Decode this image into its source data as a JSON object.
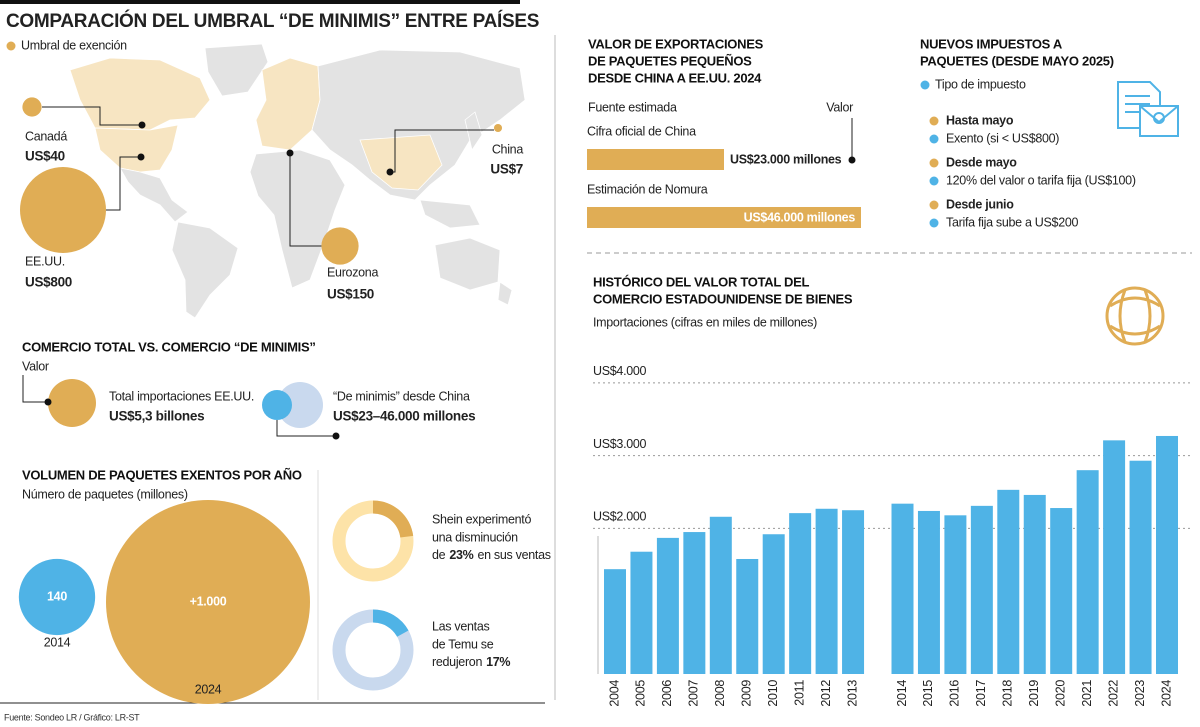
{
  "header": {
    "title": "COMPARACIÓN DEL UMBRAL “DE MINIMIS” ENTRE PAÍSES",
    "legend": "Umbral de exención"
  },
  "map": {
    "points": [
      {
        "name": "Canadá",
        "value": 40,
        "value_label": "US$40"
      },
      {
        "name": "EE.UU.",
        "value": 800,
        "value_label": "US$800"
      },
      {
        "name": "Eurozona",
        "value": 150,
        "value_label": "US$150"
      },
      {
        "name": "China",
        "value": 7,
        "value_label": "US$7"
      }
    ]
  },
  "trade": {
    "title": "COMERCIO TOTAL VS. COMERCIO “DE MINIMIS”",
    "subtitle": "Valor",
    "items": [
      {
        "label": "Total importaciones EE.UU.",
        "value": "US$5,3 billones"
      },
      {
        "label": "“De minimis” desde China",
        "value": "US$23–46.000 millones"
      }
    ]
  },
  "packages": {
    "title": "VOLUMEN DE PAQUETES EXENTOS POR AÑO",
    "subtitle": "Número de paquetes (millones)",
    "years": [
      "2014",
      "2024"
    ],
    "values": [
      140,
      1000
    ],
    "value_labels": [
      "140",
      "+1.000"
    ]
  },
  "sales": [
    {
      "lines": [
        "Shein experimentó",
        "una disminución"
      ],
      "prefix": "de",
      "value": 23,
      "value_label": "23%",
      "suffix": "en sus ventas"
    },
    {
      "lines": [
        "Las ventas",
        "de Temu se"
      ],
      "prefix": "redujeron",
      "value": 17,
      "value_label": "17%"
    }
  ],
  "chart_data": [
    {
      "type": "hbar",
      "title": [
        "VALOR DE EXPORTACIONES",
        "DE PAQUETES PEQUEÑOS",
        "DESDE CHINA A EE.UU. 2024"
      ],
      "source_header": "Fuente estimada",
      "value_header": "Valor",
      "categories": [
        "Cifra oficial de China",
        "Estimación de Nomura"
      ],
      "values": [
        23000,
        46000
      ],
      "value_labels": [
        "US$23.000 millones",
        "US$46.000 millones"
      ],
      "color": "#e0ad55"
    },
    {
      "type": "bar",
      "title": [
        "HISTÓRICO DEL VALOR TOTAL DEL",
        "COMERCIO ESTADOUNIDENSE DE BIENES"
      ],
      "subtitle": "Importaciones (cifras en miles de millones)",
      "categories": [
        "2004",
        "2005",
        "2006",
        "2007",
        "2008",
        "2009",
        "2010",
        "2011",
        "2012",
        "2013",
        "2014",
        "2015",
        "2016",
        "2017",
        "2018",
        "2019",
        "2020",
        "2021",
        "2022",
        "2023",
        "2024"
      ],
      "values": [
        1440,
        1680,
        1870,
        1950,
        2160,
        1580,
        1920,
        2210,
        2270,
        2250,
        2340,
        2240,
        2180,
        2310,
        2530,
        2460,
        2280,
        2800,
        3210,
        2930,
        3270
      ],
      "color": "#4fb3e6",
      "ylim": [
        0,
        4300
      ],
      "yticks": [
        {
          "value": 2000,
          "label": "US$2.000"
        },
        {
          "value": 3000,
          "label": "US$3.000"
        },
        {
          "value": 4000,
          "label": "US$4.000"
        }
      ],
      "grid": true
    }
  ],
  "taxes": {
    "title": [
      "NUEVOS IMPUESTOS A",
      "PAQUETES (DESDE MAYO 2025)"
    ],
    "legend": "Tipo de impuesto",
    "items": [
      {
        "period": "Hasta mayo",
        "tax": "Exento (si < US$800)"
      },
      {
        "period": "Desde mayo",
        "tax": "120% del valor o tarifa fija (US$100)"
      },
      {
        "period": "Desde junio",
        "tax": "Tarifa fija sube a US$200"
      }
    ]
  },
  "source": "Fuente: Sondeo LR / Gráfico: LR-ST"
}
